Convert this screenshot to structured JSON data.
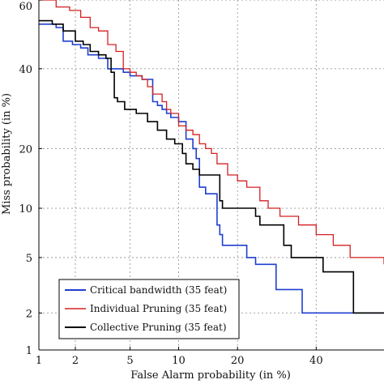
{
  "chart_data": {
    "type": "line",
    "title": "",
    "xlabel": "False Alarm probability (in %)",
    "ylabel": "Miss probability (in %)",
    "x_scale": "normal-deviate",
    "y_scale": "normal-deviate",
    "xlim": [
      1,
      60
    ],
    "ylim": [
      1,
      60
    ],
    "x_ticks": [
      1,
      2,
      5,
      10,
      20,
      40
    ],
    "y_ticks": [
      1,
      2,
      5,
      10,
      20,
      40,
      60
    ],
    "grid": true,
    "legend_position": "lower-left",
    "series": [
      {
        "name": "Critical bandwidth (35 feat)",
        "color": "#1f3fcf",
        "points": [
          [
            1,
            53
          ],
          [
            1.4,
            52
          ],
          [
            1.6,
            48
          ],
          [
            1.9,
            47
          ],
          [
            2.2,
            46
          ],
          [
            2.5,
            44
          ],
          [
            3,
            43
          ],
          [
            3.5,
            40
          ],
          [
            4.5,
            39
          ],
          [
            5,
            38
          ],
          [
            6,
            37
          ],
          [
            7,
            31
          ],
          [
            7.5,
            30
          ],
          [
            8,
            29
          ],
          [
            8.5,
            28
          ],
          [
            9,
            27
          ],
          [
            10,
            26
          ],
          [
            11,
            22
          ],
          [
            12,
            20
          ],
          [
            12.5,
            18
          ],
          [
            13,
            13
          ],
          [
            14,
            12
          ],
          [
            16,
            8
          ],
          [
            16.5,
            7
          ],
          [
            17,
            6
          ],
          [
            20,
            6
          ],
          [
            22,
            5
          ],
          [
            24,
            4.5
          ],
          [
            28,
            4.5
          ],
          [
            29,
            3
          ],
          [
            35,
            3
          ],
          [
            36,
            2
          ],
          [
            60,
            2
          ]
        ]
      },
      {
        "name": "Individual Pruning (35 feat)",
        "color": "#d42020",
        "points": [
          [
            1,
            60
          ],
          [
            1.4,
            58
          ],
          [
            1.8,
            57
          ],
          [
            2.2,
            55
          ],
          [
            2.6,
            52
          ],
          [
            3,
            51
          ],
          [
            3.5,
            47
          ],
          [
            4,
            45
          ],
          [
            4.5,
            40
          ],
          [
            5,
            39
          ],
          [
            5.5,
            38
          ],
          [
            6,
            37
          ],
          [
            6.5,
            35
          ],
          [
            7,
            33
          ],
          [
            8,
            31
          ],
          [
            8.5,
            29
          ],
          [
            9,
            28
          ],
          [
            10,
            25
          ],
          [
            11,
            24
          ],
          [
            12,
            23
          ],
          [
            13,
            21
          ],
          [
            14,
            20
          ],
          [
            15,
            19
          ],
          [
            16,
            17
          ],
          [
            18,
            15
          ],
          [
            20,
            14
          ],
          [
            22,
            13
          ],
          [
            25,
            11
          ],
          [
            27,
            10
          ],
          [
            30,
            9
          ],
          [
            35,
            8
          ],
          [
            40,
            7
          ],
          [
            45,
            6
          ],
          [
            50,
            5
          ],
          [
            60,
            4.5
          ]
        ]
      },
      {
        "name": "Collective Pruning (35 feat)",
        "color": "#000000",
        "points": [
          [
            1,
            54
          ],
          [
            1.3,
            53
          ],
          [
            1.6,
            51
          ],
          [
            2,
            48
          ],
          [
            2.3,
            47
          ],
          [
            2.6,
            45
          ],
          [
            3,
            44
          ],
          [
            3.4,
            43
          ],
          [
            3.7,
            39
          ],
          [
            3.9,
            32
          ],
          [
            4.1,
            31
          ],
          [
            4.6,
            29
          ],
          [
            5.5,
            28
          ],
          [
            6.5,
            26
          ],
          [
            7.5,
            24
          ],
          [
            8.5,
            22
          ],
          [
            9.5,
            21
          ],
          [
            10.5,
            19
          ],
          [
            11,
            17
          ],
          [
            12,
            16
          ],
          [
            13,
            15
          ],
          [
            16,
            15
          ],
          [
            16.5,
            11
          ],
          [
            17,
            10
          ],
          [
            22,
            10
          ],
          [
            24,
            9
          ],
          [
            25,
            8
          ],
          [
            30,
            8
          ],
          [
            31,
            6
          ],
          [
            33,
            5
          ],
          [
            40,
            5
          ],
          [
            42,
            4
          ],
          [
            50,
            4
          ],
          [
            51,
            2
          ],
          [
            60,
            2
          ]
        ]
      }
    ]
  }
}
